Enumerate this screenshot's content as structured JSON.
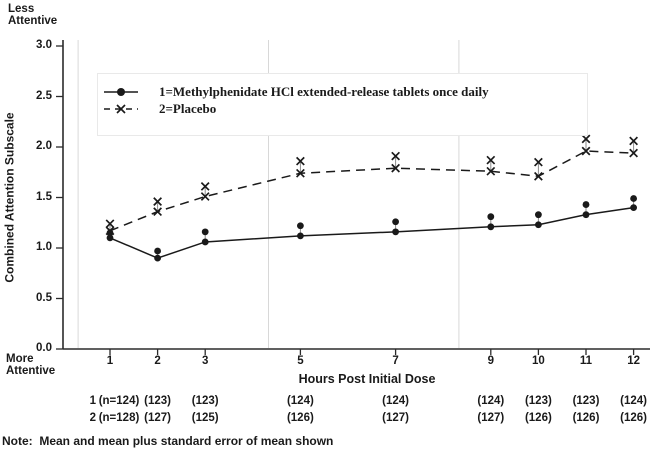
{
  "labels": {
    "less_attentive": "Less\nAttentive",
    "more_attentive": "More\nAttentive",
    "y_axis_title": "Combined Attention Subscale",
    "x_axis_title": "Hours Post Initial Dose",
    "note": "Note:  Mean and mean plus standard error of mean shown"
  },
  "legend": {
    "items": [
      {
        "label": "1=Methylphenidate HCl extended-release tablets once daily",
        "marker": "filled-circle",
        "line_style": "solid"
      },
      {
        "label": "2=Placebo",
        "marker": "x-cross",
        "line_style": "dashed"
      }
    ]
  },
  "y_axis": {
    "ticks": [
      "3.0",
      "2.5",
      "2.0",
      "1.5",
      "1.0",
      "0.5",
      "0.0"
    ]
  },
  "x_axis": {
    "ticks": [
      1,
      2,
      3,
      5,
      7,
      9,
      10,
      11,
      12
    ]
  },
  "sample_sizes": {
    "rows": [
      {
        "label": "1",
        "values": [
          "(n=124)",
          "(123)",
          "(123)",
          "(124)",
          "(124)",
          "(124)",
          "(123)",
          "(123)",
          "(124)"
        ]
      },
      {
        "label": "2",
        "values": [
          "(n=128)",
          "(127)",
          "(125)",
          "(126)",
          "(127)",
          "(127)",
          "(126)",
          "(126)",
          "(126)"
        ]
      }
    ]
  },
  "chart_data": {
    "type": "line",
    "title": "",
    "xlabel": "Hours Post Initial Dose",
    "ylabel": "Combined Attention Subscale",
    "x": [
      1,
      2,
      3,
      5,
      7,
      9,
      10,
      11,
      12
    ],
    "ylim": [
      0.0,
      3.0
    ],
    "y_tick_step": 0.5,
    "legend_position": "inside-top-left",
    "grid": "vertical-reference-lines-only",
    "reference_lines_x_hours": [
      0.33,
      4.33,
      8.33
    ],
    "series": [
      {
        "name": "1=Methylphenidate HCl extended-release tablets once daily",
        "marker": "filled-circle",
        "line_style": "solid",
        "mean": [
          1.1,
          0.9,
          1.06,
          1.12,
          1.16,
          1.21,
          1.23,
          1.33,
          1.4
        ],
        "mean_plus_se": [
          1.15,
          0.97,
          1.16,
          1.22,
          1.26,
          1.31,
          1.33,
          1.43,
          1.49
        ]
      },
      {
        "name": "2=Placebo",
        "marker": "x-cross",
        "line_style": "dashed",
        "mean": [
          1.17,
          1.36,
          1.51,
          1.74,
          1.79,
          1.76,
          1.71,
          1.96,
          1.94
        ],
        "mean_plus_se": [
          1.24,
          1.46,
          1.61,
          1.86,
          1.91,
          1.87,
          1.85,
          2.08,
          2.06
        ]
      }
    ],
    "annotation": "Mean and mean plus standard error of mean shown"
  },
  "colors": {
    "ink": "#1a1a1a",
    "axis": "#2b2b2b",
    "gridline": "#d8d8d8",
    "stem": "#8a8a8a",
    "legend_border": "#e9e9e9"
  }
}
